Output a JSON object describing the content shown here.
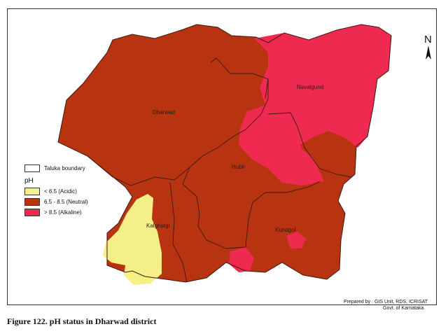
{
  "map": {
    "north_label": "N",
    "talukas": [
      {
        "key": "dharwad",
        "label": "Dharwad"
      },
      {
        "key": "navalgund",
        "label": "Navalgund"
      },
      {
        "key": "hubli",
        "label": "Hubli"
      },
      {
        "key": "kalghatgi",
        "label": "Kalghatgi"
      },
      {
        "key": "kundgol",
        "label": "Kundgol"
      }
    ],
    "ph_classes": [
      {
        "label": "< 6.5 (Acidic)",
        "color": "#f4ef86"
      },
      {
        "label": "6.5 - 8.5 (Neutral)",
        "color": "#b8330f"
      },
      {
        "label": "> 8.5 (Alkaline)",
        "color": "#ee2a50"
      }
    ]
  },
  "legend": {
    "boundary_label": "Taluka boundary",
    "heading": "pH"
  },
  "credit": {
    "line1": "Prepared by : GIS Unit, RDS, ICRISAT",
    "line2": "Govt. of Karnataka"
  },
  "caption": "Figure 122. pH status in Dharwad district"
}
